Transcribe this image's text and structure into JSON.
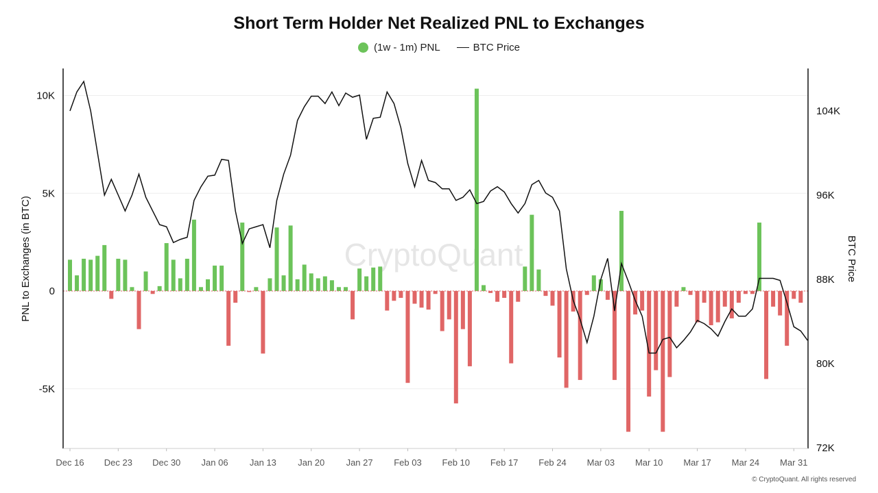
{
  "title": "Short Term Holder Net Realized PNL to Exchanges",
  "legend": {
    "pnl_label": "(1w - 1m) PNL",
    "price_label": "BTC Price"
  },
  "watermark": "CryptoQuant",
  "footer": "© CryptoQuant. All rights reserved",
  "colors": {
    "positive": "#6cc35a",
    "negative": "#e06666",
    "price": "#111111"
  },
  "chart_data": {
    "type": "bar",
    "x_ticks": [
      "Dec 16",
      "Dec 23",
      "Dec 30",
      "Jan 06",
      "Jan 13",
      "Jan 20",
      "Jan 27",
      "Feb 03",
      "Feb 10",
      "Feb 17",
      "Feb 24",
      "Mar 03",
      "Mar 10",
      "Mar 17",
      "Mar 24",
      "Mar 31"
    ],
    "ylabel": "PNL to Exchanges (in BTC)",
    "y2label": "BTC Price",
    "ylim": [
      -8100,
      11300
    ],
    "y2lim": [
      72000,
      107000
    ],
    "y_ticks": [
      10000,
      5000,
      0,
      -5000
    ],
    "y_tick_labels": [
      "10K",
      "5K",
      "0",
      "-5K"
    ],
    "y2_ticks": [
      104000,
      96000,
      88000,
      80000,
      72000
    ],
    "y2_tick_labels": [
      "104K",
      "96K",
      "88K",
      "80K",
      "72K"
    ],
    "grid": true,
    "legend_position": "top-center",
    "series": [
      {
        "name": "(1w - 1m) PNL",
        "type": "bar",
        "start_date": "Dec 16",
        "values": [
          1600,
          800,
          1650,
          1600,
          1800,
          2350,
          -400,
          1650,
          1600,
          200,
          -1950,
          1000,
          -150,
          250,
          2450,
          1600,
          650,
          1650,
          3650,
          200,
          600,
          1300,
          1300,
          -2800,
          -600,
          3500,
          -50,
          200,
          -3200,
          650,
          3250,
          800,
          3350,
          600,
          1350,
          900,
          650,
          750,
          550,
          200,
          200,
          -1450,
          1150,
          750,
          1200,
          1250,
          -1000,
          -500,
          -350,
          -4700,
          -650,
          -850,
          -950,
          -150,
          -2050,
          -1450,
          -5750,
          -1950,
          -3850,
          10350,
          300,
          -100,
          -550,
          -350,
          -3700,
          -550,
          1250,
          3900,
          1100,
          -250,
          -750,
          -3400,
          -4950,
          -1050,
          -4550,
          -200,
          800,
          600,
          -450,
          -4550,
          4100,
          -7200,
          -1200,
          -1000,
          -5400,
          -4050,
          -7200,
          -4400,
          -800,
          200,
          -200,
          -1600,
          -600,
          -1750,
          -1600,
          -800,
          -1400,
          -600,
          -150,
          -150,
          3500,
          -4500,
          -800,
          -1250,
          -2800,
          -400,
          -600
        ]
      },
      {
        "name": "BTC Price",
        "type": "line",
        "start_date": "Dec 16",
        "values": [
          104000,
          105800,
          106800,
          104000,
          100000,
          96000,
          97500,
          96000,
          94500,
          96000,
          98000,
          95800,
          94500,
          93200,
          93000,
          91500,
          91800,
          92000,
          95500,
          96800,
          97800,
          97900,
          99400,
          99300,
          94500,
          91400,
          92800,
          93000,
          93200,
          91000,
          95500,
          98000,
          99800,
          103100,
          104400,
          105400,
          105400,
          104700,
          105800,
          104500,
          105700,
          105300,
          105500,
          101300,
          103300,
          103400,
          105800,
          104700,
          102400,
          99000,
          96800,
          99300,
          97400,
          97200,
          96600,
          96600,
          95500,
          95800,
          96500,
          95200,
          95400,
          96400,
          96800,
          96300,
          95200,
          94300,
          95200,
          97000,
          97400,
          96200,
          95800,
          94500,
          89000,
          86000,
          84200,
          82000,
          84500,
          88000,
          90000,
          85000,
          89500,
          87800,
          86000,
          84500,
          81000,
          81000,
          82300,
          82500,
          81500,
          82200,
          83000,
          84100,
          83800,
          83300,
          82600,
          84000,
          85200,
          84500,
          84500,
          85200,
          88100,
          88100,
          88100,
          87900,
          85800,
          83500,
          83100,
          82200
        ]
      }
    ]
  }
}
